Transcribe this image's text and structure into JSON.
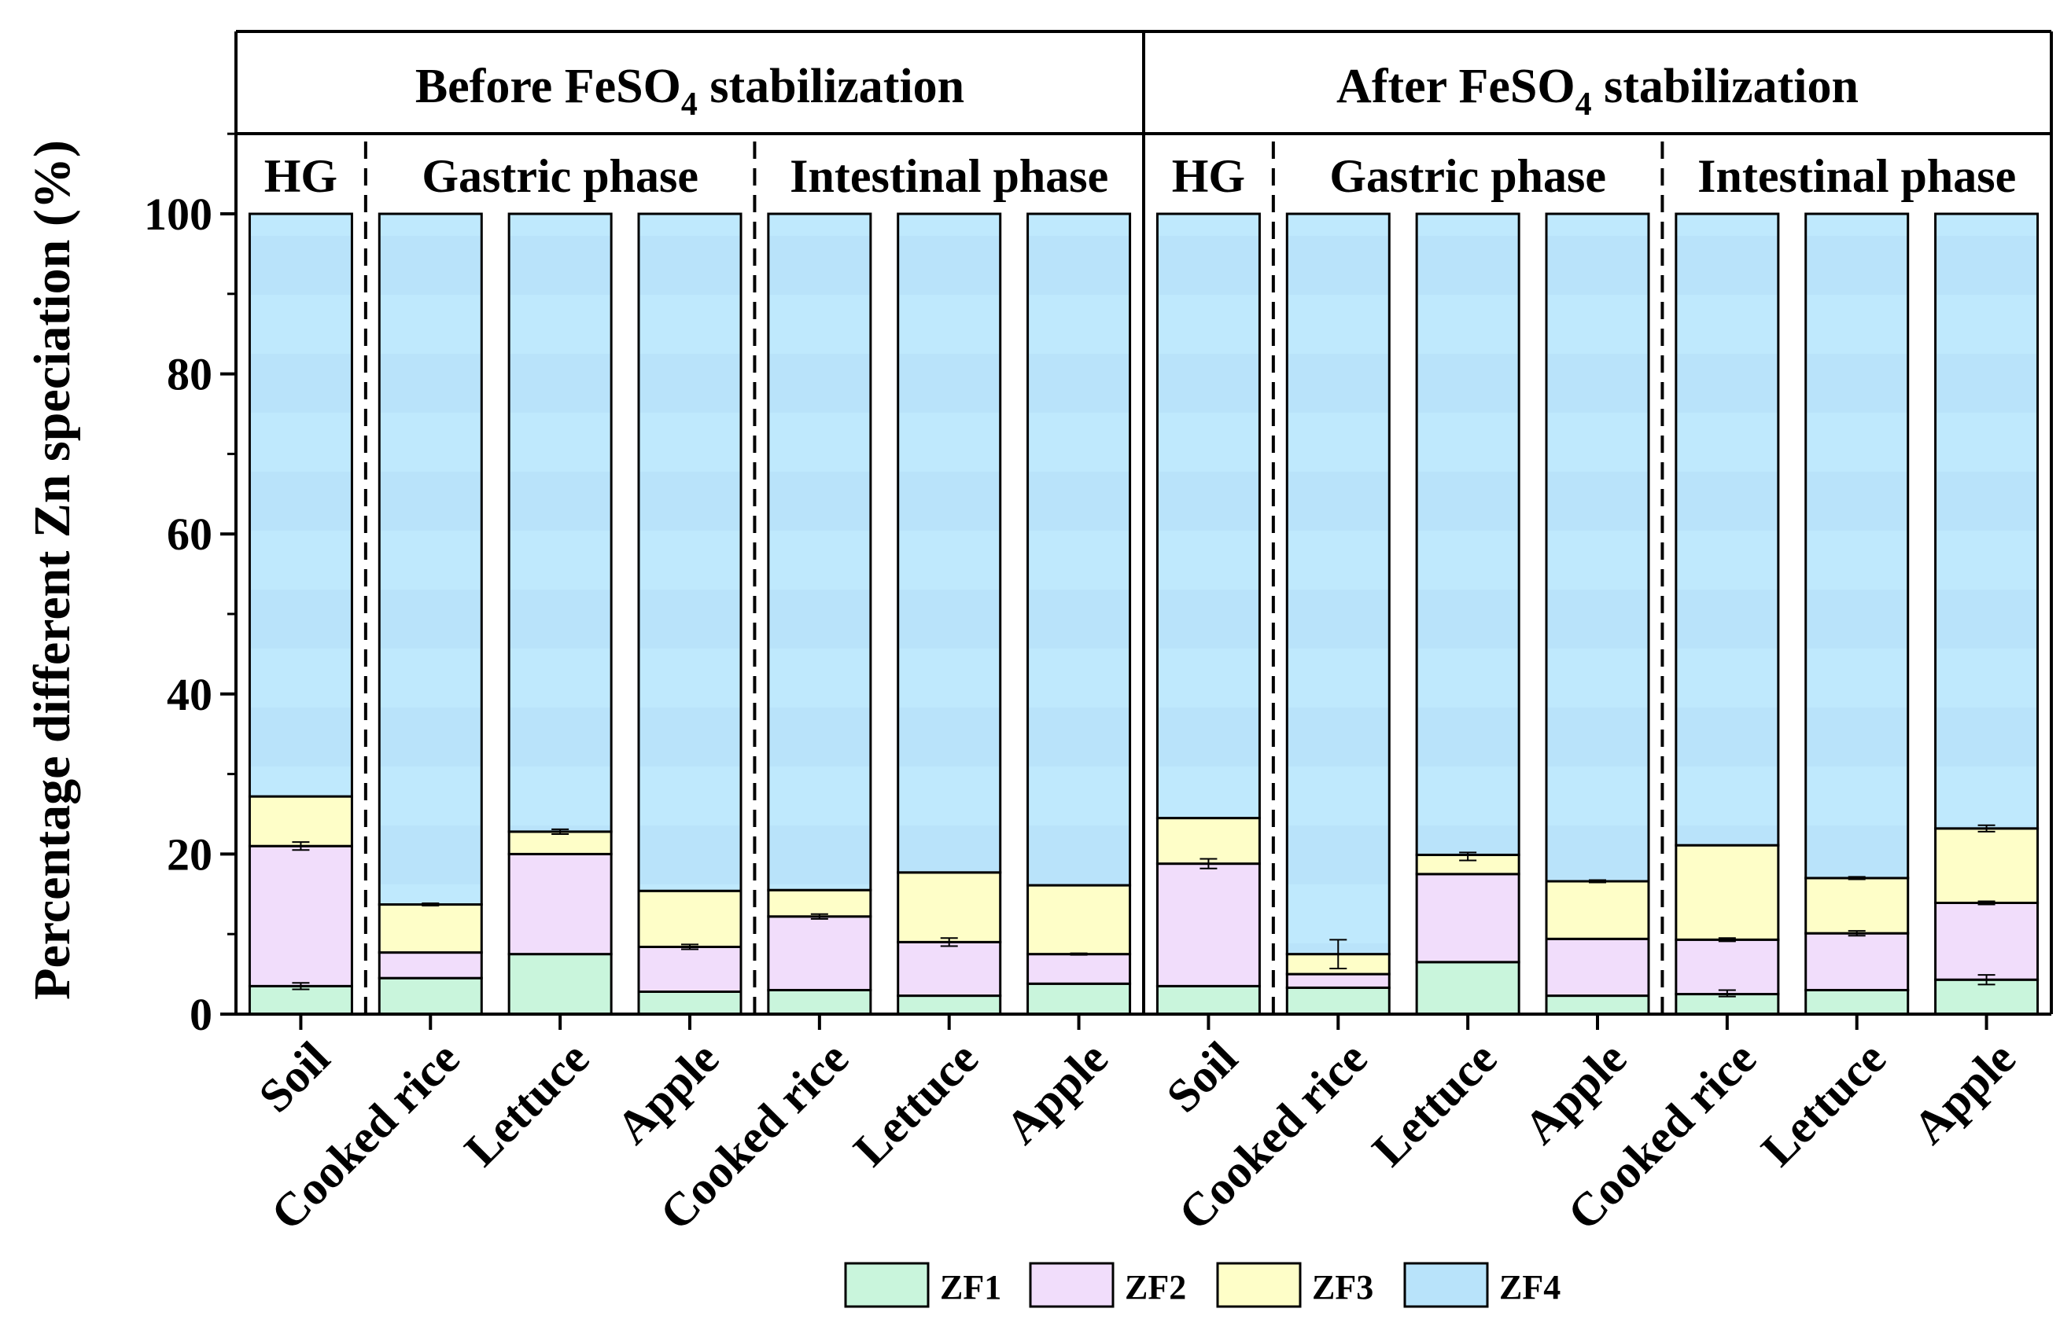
{
  "chart_data": {
    "type": "bar",
    "stacked": true,
    "title": "",
    "ylabel": "Percentage different Zn speciation (%)",
    "xlabel": "",
    "ylim": [
      0,
      100
    ],
    "yticks": [
      0,
      20,
      40,
      60,
      80,
      100
    ],
    "grid": false,
    "legend_position": "bottom",
    "groups": [
      {
        "label_main": "Before FeSO",
        "label_sub": "4",
        "label_tail": " stabilization"
      },
      {
        "label_main": "After FeSO",
        "label_sub": "4",
        "label_tail": " stabilization"
      }
    ],
    "phases": [
      "HG",
      "Gastric phase",
      "Intestinal phase",
      "HG",
      "Gastric phase",
      "Intestinal phase"
    ],
    "categories": [
      "Soil",
      "Cooked rice",
      "Lettuce",
      "Apple",
      "Cooked rice",
      "Lettuce",
      "Apple",
      "Soil",
      "Cooked rice",
      "Lettuce",
      "Apple",
      "Cooked rice",
      "Lettuce",
      "Apple"
    ],
    "series": [
      {
        "name": "ZF1",
        "color": "#c9f5dc",
        "values": [
          3.5,
          4.5,
          7.5,
          2.8,
          3.0,
          2.3,
          3.8,
          3.5,
          3.3,
          6.5,
          2.3,
          2.5,
          3.0,
          4.3
        ]
      },
      {
        "name": "ZF2",
        "color": "#f1ddfb",
        "values": [
          17.5,
          3.2,
          12.5,
          5.6,
          9.2,
          6.7,
          3.7,
          15.3,
          1.7,
          11.0,
          7.1,
          6.8,
          7.1,
          9.6
        ]
      },
      {
        "name": "ZF3",
        "color": "#fefec8",
        "values": [
          6.2,
          6.0,
          2.8,
          7.0,
          3.3,
          8.7,
          8.6,
          5.7,
          2.5,
          2.4,
          7.2,
          11.8,
          6.9,
          9.3
        ]
      },
      {
        "name": "ZF4",
        "color": "#b8e3fa",
        "values": [
          72.8,
          86.3,
          77.2,
          84.6,
          84.5,
          82.3,
          83.9,
          75.5,
          92.5,
          80.1,
          83.4,
          78.9,
          83.0,
          76.8
        ]
      }
    ],
    "error_bars": [
      {
        "category_index": 0,
        "level": 3.5,
        "err": 0.4
      },
      {
        "category_index": 0,
        "level": 21.0,
        "err": 0.5
      },
      {
        "category_index": 1,
        "level": 13.7,
        "err": 0.15
      },
      {
        "category_index": 2,
        "level": 22.8,
        "err": 0.3
      },
      {
        "category_index": 3,
        "level": 8.4,
        "err": 0.3
      },
      {
        "category_index": 4,
        "level": 12.2,
        "err": 0.3
      },
      {
        "category_index": 5,
        "level": 9.0,
        "err": 0.5
      },
      {
        "category_index": 6,
        "level": 7.5,
        "err": 0.1
      },
      {
        "category_index": 7,
        "level": 18.8,
        "err": 0.6
      },
      {
        "category_index": 8,
        "level": 7.5,
        "err": 1.8
      },
      {
        "category_index": 9,
        "level": 19.7,
        "err": 0.5
      },
      {
        "category_index": 10,
        "level": 16.6,
        "err": 0.15
      },
      {
        "category_index": 11,
        "level": 2.6,
        "err": 0.4
      },
      {
        "category_index": 11,
        "level": 9.3,
        "err": 0.2
      },
      {
        "category_index": 12,
        "level": 17.0,
        "err": 0.15
      },
      {
        "category_index": 12,
        "level": 10.1,
        "err": 0.3
      },
      {
        "category_index": 13,
        "level": 4.3,
        "err": 0.6
      },
      {
        "category_index": 13,
        "level": 13.9,
        "err": 0.2
      },
      {
        "category_index": 13,
        "level": 23.2,
        "err": 0.4
      }
    ]
  }
}
